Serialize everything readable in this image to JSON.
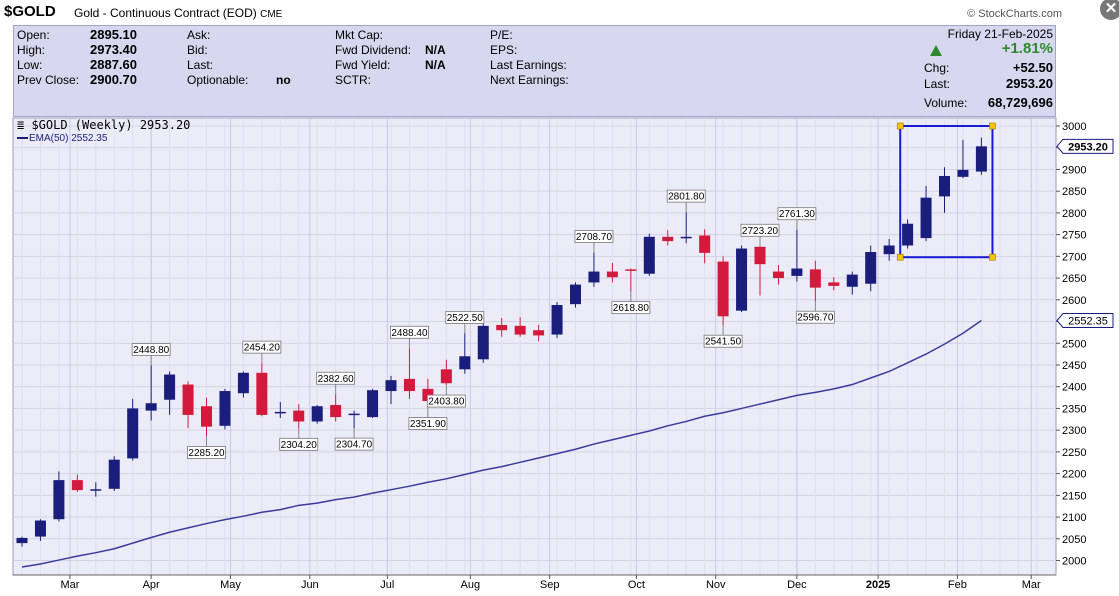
{
  "header": {
    "symbol": "$GOLD",
    "description": "Gold - Continuous Contract (EOD)",
    "exchange": "CME",
    "brand": "© StockCharts.com",
    "close_icon": "close-icon"
  },
  "quote": {
    "open_label": "Open:",
    "open": "2895.10",
    "high_label": "High:",
    "high": "2973.40",
    "low_label": "Low:",
    "low": "2887.60",
    "prev_close_label": "Prev Close:",
    "prev_close": "2900.70",
    "ask_label": "Ask:",
    "bid_label": "Bid:",
    "last_label_mid": "Last:",
    "optionable_label": "Optionable:",
    "optionable": "no",
    "mkt_cap_label": "Mkt Cap:",
    "fwd_dividend_label": "Fwd Dividend:",
    "fwd_dividend": "N/A",
    "fwd_yield_label": "Fwd Yield:",
    "fwd_yield": "N/A",
    "sctr_label": "SCTR:",
    "pe_label": "P/E:",
    "eps_label": "EPS:",
    "last_earnings_label": "Last Earnings:",
    "next_earnings_label": "Next Earnings:",
    "date": "Friday  21-Feb-2025",
    "chg_pct": "+1.81%",
    "chg_label": "Chg:",
    "chg": "+52.50",
    "last_label": "Last:",
    "last": "2953.20",
    "volume_label": "Volume:",
    "volume": "68,729,696",
    "up_color": "#2f8a2f"
  },
  "chart_data": {
    "type": "candlestick",
    "legend_main": "$GOLD (Weekly) 2953.20",
    "legend_ema": "EMA(50) 2552.35",
    "price_tag": "2953.20",
    "ema_tag": "2552.35",
    "y_range": [
      1970,
      3020
    ],
    "y_ticks": [
      2000,
      2050,
      2100,
      2150,
      2200,
      2250,
      2300,
      2350,
      2400,
      2450,
      2500,
      2550,
      2600,
      2650,
      2700,
      2750,
      2800,
      2850,
      2900,
      2950,
      3000
    ],
    "x_labels": [
      "Mar",
      "Apr",
      "May",
      "Jun",
      "Jul",
      "Aug",
      "Sep",
      "Oct",
      "Nov",
      "Dec",
      "2025",
      "Feb",
      "Mar"
    ],
    "x_label_weeks": [
      2.6,
      7.0,
      11.3,
      15.6,
      19.8,
      24.3,
      28.6,
      33.3,
      37.6,
      42.0,
      46.4,
      50.7,
      54.7
    ],
    "candles": [
      {
        "o": 2040,
        "h": 2055,
        "l": 2032,
        "c": 2052
      },
      {
        "o": 2055,
        "h": 2095,
        "l": 2045,
        "c": 2092
      },
      {
        "o": 2095,
        "h": 2205,
        "l": 2090,
        "c": 2185
      },
      {
        "o": 2185,
        "h": 2198,
        "l": 2158,
        "c": 2162
      },
      {
        "o": 2162,
        "h": 2180,
        "l": 2147,
        "c": 2164
      },
      {
        "o": 2165,
        "h": 2240,
        "l": 2160,
        "c": 2232
      },
      {
        "o": 2235,
        "h": 2372,
        "l": 2230,
        "c": 2350
      },
      {
        "o": 2345,
        "h": 2448.8,
        "l": 2322,
        "c": 2362
      },
      {
        "o": 2370,
        "h": 2435,
        "l": 2335,
        "c": 2428
      },
      {
        "o": 2405,
        "h": 2412,
        "l": 2305,
        "c": 2335
      },
      {
        "o": 2355,
        "h": 2375,
        "l": 2285.2,
        "c": 2308
      },
      {
        "o": 2310,
        "h": 2395,
        "l": 2302,
        "c": 2390
      },
      {
        "o": 2385,
        "h": 2435,
        "l": 2375,
        "c": 2432
      },
      {
        "o": 2432,
        "h": 2454.2,
        "l": 2332,
        "c": 2335
      },
      {
        "o": 2340,
        "h": 2365,
        "l": 2328,
        "c": 2342
      },
      {
        "o": 2345,
        "h": 2360,
        "l": 2304.2,
        "c": 2320
      },
      {
        "o": 2320,
        "h": 2358,
        "l": 2315,
        "c": 2355
      },
      {
        "o": 2358,
        "h": 2382.6,
        "l": 2320,
        "c": 2330
      },
      {
        "o": 2335,
        "h": 2345,
        "l": 2304.7,
        "c": 2338
      },
      {
        "o": 2330,
        "h": 2395,
        "l": 2328,
        "c": 2392
      },
      {
        "o": 2390,
        "h": 2425,
        "l": 2360,
        "c": 2415
      },
      {
        "o": 2418,
        "h": 2488.4,
        "l": 2372,
        "c": 2390
      },
      {
        "o": 2395,
        "h": 2418,
        "l": 2351.9,
        "c": 2367
      },
      {
        "o": 2440,
        "h": 2462,
        "l": 2403.8,
        "c": 2408
      },
      {
        "o": 2440,
        "h": 2522.5,
        "l": 2430,
        "c": 2470
      },
      {
        "o": 2463,
        "h": 2550,
        "l": 2455,
        "c": 2540
      },
      {
        "o": 2542,
        "h": 2558,
        "l": 2515,
        "c": 2530
      },
      {
        "o": 2540,
        "h": 2560,
        "l": 2515,
        "c": 2520
      },
      {
        "o": 2530,
        "h": 2542,
        "l": 2505,
        "c": 2518
      },
      {
        "o": 2520,
        "h": 2595,
        "l": 2512,
        "c": 2588
      },
      {
        "o": 2590,
        "h": 2640,
        "l": 2582,
        "c": 2635
      },
      {
        "o": 2640,
        "h": 2708.7,
        "l": 2630,
        "c": 2665
      },
      {
        "o": 2665,
        "h": 2685,
        "l": 2640,
        "c": 2652
      },
      {
        "o": 2670,
        "h": 2672,
        "l": 2618.8,
        "c": 2668
      },
      {
        "o": 2660,
        "h": 2752,
        "l": 2655,
        "c": 2745
      },
      {
        "o": 2745,
        "h": 2760,
        "l": 2725,
        "c": 2735
      },
      {
        "o": 2742,
        "h": 2801.8,
        "l": 2730,
        "c": 2745
      },
      {
        "o": 2748,
        "h": 2762,
        "l": 2684,
        "c": 2708
      },
      {
        "o": 2688,
        "h": 2700,
        "l": 2541.5,
        "c": 2562
      },
      {
        "o": 2575,
        "h": 2725,
        "l": 2572,
        "c": 2718
      },
      {
        "o": 2722,
        "h": 2723.2,
        "l": 2610,
        "c": 2682
      },
      {
        "o": 2665,
        "h": 2680,
        "l": 2635,
        "c": 2650
      },
      {
        "o": 2655,
        "h": 2761.3,
        "l": 2642,
        "c": 2672
      },
      {
        "o": 2670,
        "h": 2690,
        "l": 2596.7,
        "c": 2628
      },
      {
        "o": 2640,
        "h": 2652,
        "l": 2622,
        "c": 2632
      },
      {
        "o": 2630,
        "h": 2665,
        "l": 2612,
        "c": 2658
      },
      {
        "o": 2637,
        "h": 2725,
        "l": 2620,
        "c": 2710
      },
      {
        "o": 2705,
        "h": 2740,
        "l": 2690,
        "c": 2725
      },
      {
        "o": 2725,
        "h": 2785,
        "l": 2718,
        "c": 2775
      },
      {
        "o": 2742,
        "h": 2862,
        "l": 2735,
        "c": 2835
      },
      {
        "o": 2838,
        "h": 2905,
        "l": 2800,
        "c": 2885
      },
      {
        "o": 2883,
        "h": 2968,
        "l": 2880,
        "c": 2899
      },
      {
        "o": 2895.1,
        "h": 2973.4,
        "l": 2887.6,
        "c": 2953.2
      }
    ],
    "ema": [
      1985,
      1992,
      2001,
      2010,
      2018,
      2027,
      2040,
      2053,
      2065,
      2075,
      2085,
      2094,
      2102,
      2111,
      2117,
      2127,
      2132,
      2140,
      2146,
      2155,
      2163,
      2171,
      2180,
      2188,
      2198,
      2208,
      2216,
      2226,
      2236,
      2246,
      2256,
      2268,
      2278,
      2288,
      2298,
      2310,
      2320,
      2332,
      2340,
      2350,
      2360,
      2370,
      2380,
      2387,
      2395,
      2405,
      2420,
      2435,
      2455,
      2475,
      2498,
      2523,
      2552.35
    ],
    "annotations": [
      {
        "week": 7,
        "value": 2448.8,
        "label": "2448.80",
        "pos": "above"
      },
      {
        "week": 10,
        "value": 2285.2,
        "label": "2285.20",
        "pos": "below"
      },
      {
        "week": 13,
        "value": 2454.2,
        "label": "2454.20",
        "pos": "above"
      },
      {
        "week": 15,
        "value": 2304.2,
        "label": "2304.20",
        "pos": "below"
      },
      {
        "week": 17,
        "value": 2382.6,
        "label": "2382.60",
        "pos": "above"
      },
      {
        "week": 18,
        "value": 2304.7,
        "label": "2304.70",
        "pos": "below"
      },
      {
        "week": 21,
        "value": 2488.4,
        "label": "2488.40",
        "pos": "above"
      },
      {
        "week": 22,
        "value": 2351.9,
        "label": "2351.90",
        "pos": "below"
      },
      {
        "week": 23,
        "value": 2403.8,
        "label": "2403.80",
        "pos": "below"
      },
      {
        "week": 24,
        "value": 2522.5,
        "label": "2522.50",
        "pos": "above"
      },
      {
        "week": 31,
        "value": 2708.7,
        "label": "2708.70",
        "pos": "above"
      },
      {
        "week": 33,
        "value": 2618.8,
        "label": "2618.80",
        "pos": "below"
      },
      {
        "week": 36,
        "value": 2801.8,
        "label": "2801.80",
        "pos": "above"
      },
      {
        "week": 38,
        "value": 2541.5,
        "label": "2541.50",
        "pos": "below"
      },
      {
        "week": 40,
        "value": 2723.2,
        "label": "2723.20",
        "pos": "above"
      },
      {
        "week": 42,
        "value": 2761.3,
        "label": "2761.30",
        "pos": "above"
      },
      {
        "week": 43,
        "value": 2596.7,
        "label": "2596.70",
        "pos": "below"
      }
    ],
    "highlight_box": {
      "week_from": 47.6,
      "week_to": 52.6,
      "value_low": 2698,
      "value_high": 3000,
      "color": "#1a1ad4"
    },
    "colors": {
      "up": "#1b1d7c",
      "down": "#d41a3c",
      "ema": "#3b3b9b",
      "grid": "#d2d2e6",
      "plot_bg": "#ececf8"
    }
  }
}
